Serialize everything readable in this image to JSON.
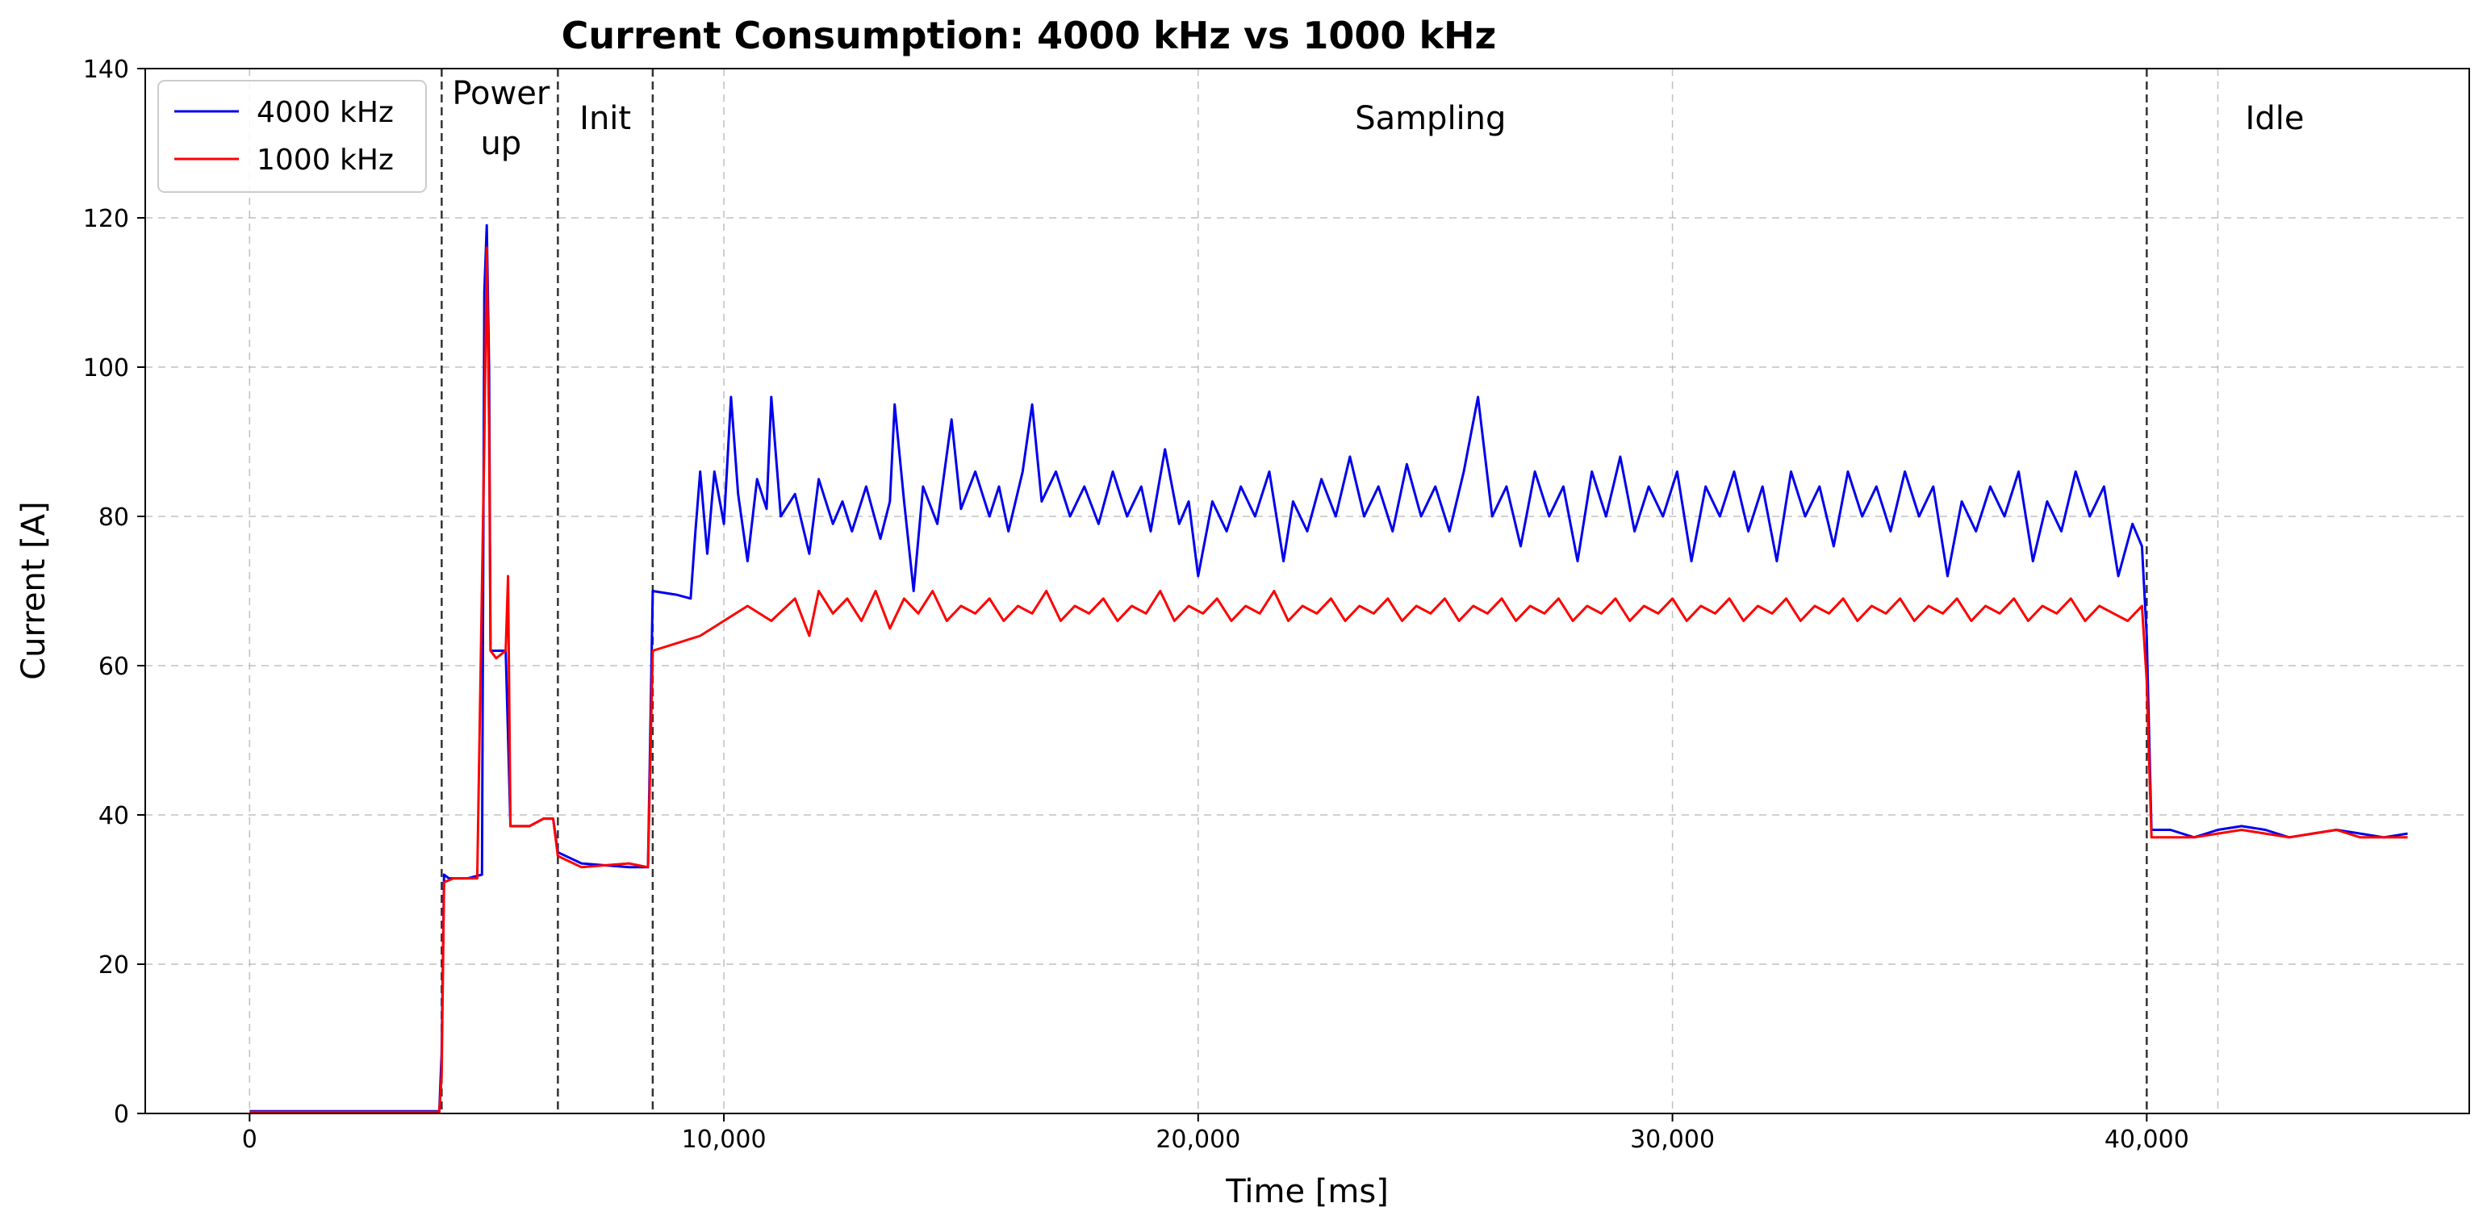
{
  "chart_data": {
    "type": "line",
    "title": "Current Consumption: 4000 kHz vs 1000 kHz",
    "xlabel": "Time [ms]",
    "ylabel": "Current [A]",
    "xlim": [
      -2200,
      46800
    ],
    "ylim": [
      0,
      140
    ],
    "x_ticks": [
      {
        "value": 0,
        "label": "0"
      },
      {
        "value": 10000,
        "label": "10,000"
      },
      {
        "value": 20000,
        "label": "20,000"
      },
      {
        "value": 30000,
        "label": "30,000"
      },
      {
        "value": 40000,
        "label": "40,000"
      }
    ],
    "y_ticks": [
      {
        "value": 0,
        "label": "0"
      },
      {
        "value": 20,
        "label": "20"
      },
      {
        "value": 40,
        "label": "40"
      },
      {
        "value": 60,
        "label": "60"
      },
      {
        "value": 80,
        "label": "80"
      },
      {
        "value": 100,
        "label": "100"
      },
      {
        "value": 120,
        "label": "120"
      },
      {
        "value": 140,
        "label": "140"
      }
    ],
    "extra_grid_x": [
      41500
    ],
    "grid": true,
    "legend_position": "top-left",
    "phase_boundaries": [
      4050,
      6500,
      8500,
      40000
    ],
    "phases": [
      {
        "name": "Power up",
        "lines": [
          "Power",
          "up"
        ],
        "center": 5300
      },
      {
        "name": "Init",
        "lines": [
          "Init"
        ],
        "center": 7500
      },
      {
        "name": "Sampling",
        "lines": [
          "Sampling"
        ],
        "center": 24900
      },
      {
        "name": "Idle",
        "lines": [
          "Idle"
        ],
        "center": 42700
      }
    ],
    "series": [
      {
        "name": "4000 kHz",
        "color": "#0000ee",
        "points": [
          [
            0,
            0.3
          ],
          [
            4000,
            0.3
          ],
          [
            4050,
            8
          ],
          [
            4100,
            32
          ],
          [
            4200,
            31.5
          ],
          [
            4600,
            31.5
          ],
          [
            4900,
            32
          ],
          [
            4950,
            110
          ],
          [
            5000,
            119
          ],
          [
            5050,
            100
          ],
          [
            5080,
            62
          ],
          [
            5300,
            62
          ],
          [
            5400,
            62
          ],
          [
            5500,
            38.5
          ],
          [
            5900,
            38.5
          ],
          [
            6200,
            39.5
          ],
          [
            6400,
            39.5
          ],
          [
            6500,
            35
          ],
          [
            7000,
            33.5
          ],
          [
            8000,
            33
          ],
          [
            8400,
            33
          ],
          [
            8500,
            70
          ],
          [
            9000,
            69.5
          ],
          [
            9300,
            69
          ],
          [
            9400,
            78
          ],
          [
            9500,
            86
          ],
          [
            9650,
            75
          ],
          [
            9800,
            86
          ],
          [
            10000,
            79
          ],
          [
            10150,
            96
          ],
          [
            10300,
            83
          ],
          [
            10500,
            74
          ],
          [
            10700,
            85
          ],
          [
            10900,
            81
          ],
          [
            11000,
            96
          ],
          [
            11200,
            80
          ],
          [
            11500,
            83
          ],
          [
            11800,
            75
          ],
          [
            12000,
            85
          ],
          [
            12300,
            79
          ],
          [
            12500,
            82
          ],
          [
            12700,
            78
          ],
          [
            13000,
            84
          ],
          [
            13300,
            77
          ],
          [
            13500,
            82
          ],
          [
            13600,
            95
          ],
          [
            13800,
            82
          ],
          [
            14000,
            70
          ],
          [
            14200,
            84
          ],
          [
            14500,
            79
          ],
          [
            14800,
            93
          ],
          [
            15000,
            81
          ],
          [
            15300,
            86
          ],
          [
            15600,
            80
          ],
          [
            15800,
            84
          ],
          [
            16000,
            78
          ],
          [
            16300,
            86
          ],
          [
            16500,
            95
          ],
          [
            16700,
            82
          ],
          [
            17000,
            86
          ],
          [
            17300,
            80
          ],
          [
            17600,
            84
          ],
          [
            17900,
            79
          ],
          [
            18200,
            86
          ],
          [
            18500,
            80
          ],
          [
            18800,
            84
          ],
          [
            19000,
            78
          ],
          [
            19300,
            89
          ],
          [
            19600,
            79
          ],
          [
            19800,
            82
          ],
          [
            20000,
            72
          ],
          [
            20300,
            82
          ],
          [
            20600,
            78
          ],
          [
            20900,
            84
          ],
          [
            21200,
            80
          ],
          [
            21500,
            86
          ],
          [
            21800,
            74
          ],
          [
            22000,
            82
          ],
          [
            22300,
            78
          ],
          [
            22600,
            85
          ],
          [
            22900,
            80
          ],
          [
            23200,
            88
          ],
          [
            23500,
            80
          ],
          [
            23800,
            84
          ],
          [
            24100,
            78
          ],
          [
            24400,
            87
          ],
          [
            24700,
            80
          ],
          [
            25000,
            84
          ],
          [
            25300,
            78
          ],
          [
            25600,
            86
          ],
          [
            25900,
            96
          ],
          [
            26200,
            80
          ],
          [
            26500,
            84
          ],
          [
            26800,
            76
          ],
          [
            27100,
            86
          ],
          [
            27400,
            80
          ],
          [
            27700,
            84
          ],
          [
            28000,
            74
          ],
          [
            28300,
            86
          ],
          [
            28600,
            80
          ],
          [
            28900,
            88
          ],
          [
            29200,
            78
          ],
          [
            29500,
            84
          ],
          [
            29800,
            80
          ],
          [
            30100,
            86
          ],
          [
            30400,
            74
          ],
          [
            30700,
            84
          ],
          [
            31000,
            80
          ],
          [
            31300,
            86
          ],
          [
            31600,
            78
          ],
          [
            31900,
            84
          ],
          [
            32200,
            74
          ],
          [
            32500,
            86
          ],
          [
            32800,
            80
          ],
          [
            33100,
            84
          ],
          [
            33400,
            76
          ],
          [
            33700,
            86
          ],
          [
            34000,
            80
          ],
          [
            34300,
            84
          ],
          [
            34600,
            78
          ],
          [
            34900,
            86
          ],
          [
            35200,
            80
          ],
          [
            35500,
            84
          ],
          [
            35800,
            72
          ],
          [
            36100,
            82
          ],
          [
            36400,
            78
          ],
          [
            36700,
            84
          ],
          [
            37000,
            80
          ],
          [
            37300,
            86
          ],
          [
            37600,
            74
          ],
          [
            37900,
            82
          ],
          [
            38200,
            78
          ],
          [
            38500,
            86
          ],
          [
            38800,
            80
          ],
          [
            39100,
            84
          ],
          [
            39400,
            72
          ],
          [
            39700,
            79
          ],
          [
            39900,
            76
          ],
          [
            40000,
            64
          ],
          [
            40100,
            38
          ],
          [
            40500,
            38
          ],
          [
            41000,
            37
          ],
          [
            41500,
            38
          ],
          [
            42000,
            38.5
          ],
          [
            42500,
            38
          ],
          [
            43000,
            37
          ],
          [
            43500,
            37.5
          ],
          [
            44000,
            38
          ],
          [
            44500,
            37.5
          ],
          [
            45000,
            37
          ],
          [
            45500,
            37.5
          ]
        ]
      },
      {
        "name": "1000 kHz",
        "color": "#ff0000",
        "points": [
          [
            0,
            0.2
          ],
          [
            4000,
            0.2
          ],
          [
            4050,
            5
          ],
          [
            4100,
            31
          ],
          [
            4300,
            31.5
          ],
          [
            4800,
            31.5
          ],
          [
            4950,
            90
          ],
          [
            5000,
            116
          ],
          [
            5050,
            92
          ],
          [
            5080,
            62
          ],
          [
            5200,
            61
          ],
          [
            5400,
            62
          ],
          [
            5450,
            72
          ],
          [
            5500,
            38.5
          ],
          [
            5900,
            38.5
          ],
          [
            6200,
            39.5
          ],
          [
            6400,
            39.5
          ],
          [
            6500,
            34.5
          ],
          [
            7000,
            33
          ],
          [
            8000,
            33.5
          ],
          [
            8400,
            33
          ],
          [
            8500,
            62
          ],
          [
            9000,
            63
          ],
          [
            9500,
            64
          ],
          [
            10000,
            66
          ],
          [
            10500,
            68
          ],
          [
            11000,
            66
          ],
          [
            11500,
            69
          ],
          [
            11800,
            64
          ],
          [
            12000,
            70
          ],
          [
            12300,
            67
          ],
          [
            12600,
            69
          ],
          [
            12900,
            66
          ],
          [
            13200,
            70
          ],
          [
            13500,
            65
          ],
          [
            13800,
            69
          ],
          [
            14100,
            67
          ],
          [
            14400,
            70
          ],
          [
            14700,
            66
          ],
          [
            15000,
            68
          ],
          [
            15300,
            67
          ],
          [
            15600,
            69
          ],
          [
            15900,
            66
          ],
          [
            16200,
            68
          ],
          [
            16500,
            67
          ],
          [
            16800,
            70
          ],
          [
            17100,
            66
          ],
          [
            17400,
            68
          ],
          [
            17700,
            67
          ],
          [
            18000,
            69
          ],
          [
            18300,
            66
          ],
          [
            18600,
            68
          ],
          [
            18900,
            67
          ],
          [
            19200,
            70
          ],
          [
            19500,
            66
          ],
          [
            19800,
            68
          ],
          [
            20100,
            67
          ],
          [
            20400,
            69
          ],
          [
            20700,
            66
          ],
          [
            21000,
            68
          ],
          [
            21300,
            67
          ],
          [
            21600,
            70
          ],
          [
            21900,
            66
          ],
          [
            22200,
            68
          ],
          [
            22500,
            67
          ],
          [
            22800,
            69
          ],
          [
            23100,
            66
          ],
          [
            23400,
            68
          ],
          [
            23700,
            67
          ],
          [
            24000,
            69
          ],
          [
            24300,
            66
          ],
          [
            24600,
            68
          ],
          [
            24900,
            67
          ],
          [
            25200,
            69
          ],
          [
            25500,
            66
          ],
          [
            25800,
            68
          ],
          [
            26100,
            67
          ],
          [
            26400,
            69
          ],
          [
            26700,
            66
          ],
          [
            27000,
            68
          ],
          [
            27300,
            67
          ],
          [
            27600,
            69
          ],
          [
            27900,
            66
          ],
          [
            28200,
            68
          ],
          [
            28500,
            67
          ],
          [
            28800,
            69
          ],
          [
            29100,
            66
          ],
          [
            29400,
            68
          ],
          [
            29700,
            67
          ],
          [
            30000,
            69
          ],
          [
            30300,
            66
          ],
          [
            30600,
            68
          ],
          [
            30900,
            67
          ],
          [
            31200,
            69
          ],
          [
            31500,
            66
          ],
          [
            31800,
            68
          ],
          [
            32100,
            67
          ],
          [
            32400,
            69
          ],
          [
            32700,
            66
          ],
          [
            33000,
            68
          ],
          [
            33300,
            67
          ],
          [
            33600,
            69
          ],
          [
            33900,
            66
          ],
          [
            34200,
            68
          ],
          [
            34500,
            67
          ],
          [
            34800,
            69
          ],
          [
            35100,
            66
          ],
          [
            35400,
            68
          ],
          [
            35700,
            67
          ],
          [
            36000,
            69
          ],
          [
            36300,
            66
          ],
          [
            36600,
            68
          ],
          [
            36900,
            67
          ],
          [
            37200,
            69
          ],
          [
            37500,
            66
          ],
          [
            37800,
            68
          ],
          [
            38100,
            67
          ],
          [
            38400,
            69
          ],
          [
            38700,
            66
          ],
          [
            39000,
            68
          ],
          [
            39300,
            67
          ],
          [
            39600,
            66
          ],
          [
            39900,
            68
          ],
          [
            40000,
            58
          ],
          [
            40100,
            37
          ],
          [
            40500,
            37
          ],
          [
            41000,
            37
          ],
          [
            41500,
            37.5
          ],
          [
            42000,
            38
          ],
          [
            42500,
            37.5
          ],
          [
            43000,
            37
          ],
          [
            43500,
            37.5
          ],
          [
            44000,
            38
          ],
          [
            44500,
            37
          ],
          [
            45000,
            37
          ],
          [
            45500,
            37
          ]
        ]
      }
    ]
  }
}
